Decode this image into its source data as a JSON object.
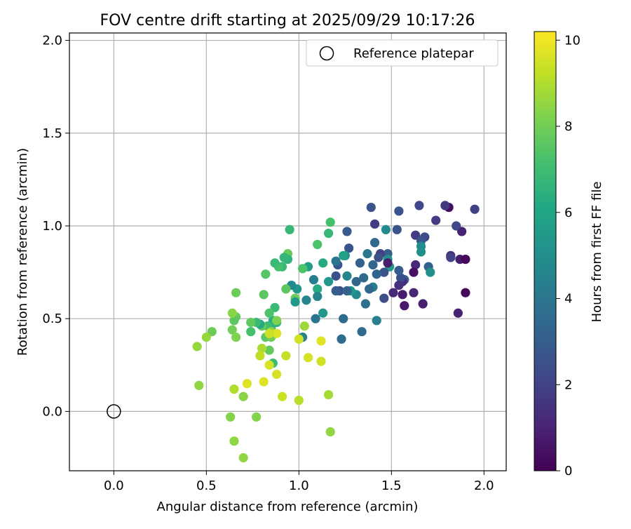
{
  "chart_data": {
    "type": "scatter",
    "title": "FOV centre drift starting at 2025/09/29 10:17:26",
    "xlabel": "Angular distance from reference (arcmin)",
    "ylabel": "Rotation from reference (arcmin)",
    "xlim": [
      -0.24,
      2.12
    ],
    "ylim": [
      -0.32,
      2.04
    ],
    "xticks": [
      0.0,
      0.5,
      1.0,
      1.5,
      2.0
    ],
    "xtick_labels": [
      "0.0",
      "0.5",
      "1.0",
      "1.5",
      "2.0"
    ],
    "yticks": [
      0.0,
      0.5,
      1.0,
      1.5,
      2.0
    ],
    "ytick_labels": [
      "0.0",
      "0.5",
      "1.0",
      "1.5",
      "2.0"
    ],
    "grid": true,
    "legend": {
      "position": "top-right",
      "entries": [
        "Reference platepar"
      ]
    },
    "reference_point": {
      "x": 0.0,
      "y": 0.0,
      "label": "Reference platepar"
    },
    "colorbar": {
      "label": "Hours from first FF file",
      "min": 0,
      "max": 10.2,
      "ticks": [
        0,
        2,
        4,
        6,
        8,
        10
      ],
      "tick_labels": [
        "0",
        "2",
        "4",
        "6",
        "8",
        "10"
      ],
      "colormap": "viridis"
    },
    "points": [
      {
        "x": 1.81,
        "y": 1.1,
        "c": 0.3
      },
      {
        "x": 1.79,
        "y": 1.11,
        "c": 1.6
      },
      {
        "x": 1.88,
        "y": 0.97,
        "c": 1.0
      },
      {
        "x": 1.85,
        "y": 1.0,
        "c": 2.2
      },
      {
        "x": 1.95,
        "y": 1.09,
        "c": 1.9
      },
      {
        "x": 1.87,
        "y": 0.82,
        "c": 0.8
      },
      {
        "x": 1.9,
        "y": 0.82,
        "c": 0.2
      },
      {
        "x": 1.82,
        "y": 0.84,
        "c": 1.2
      },
      {
        "x": 1.82,
        "y": 0.83,
        "c": 2.0
      },
      {
        "x": 1.9,
        "y": 0.64,
        "c": 0.2
      },
      {
        "x": 1.86,
        "y": 0.53,
        "c": 1.0
      },
      {
        "x": 1.74,
        "y": 1.03,
        "c": 1.8
      },
      {
        "x": 1.68,
        "y": 0.94,
        "c": 2.3
      },
      {
        "x": 1.65,
        "y": 1.11,
        "c": 2.2
      },
      {
        "x": 1.63,
        "y": 0.95,
        "c": 1.8
      },
      {
        "x": 1.66,
        "y": 0.92,
        "c": 2.7
      },
      {
        "x": 1.66,
        "y": 0.89,
        "c": 4.9
      },
      {
        "x": 1.66,
        "y": 0.86,
        "c": 5.0
      },
      {
        "x": 1.7,
        "y": 0.78,
        "c": 3.2
      },
      {
        "x": 1.71,
        "y": 0.75,
        "c": 5.0
      },
      {
        "x": 1.63,
        "y": 0.79,
        "c": 1.2
      },
      {
        "x": 1.62,
        "y": 0.75,
        "c": 0.4
      },
      {
        "x": 1.62,
        "y": 0.64,
        "c": 1.1
      },
      {
        "x": 1.67,
        "y": 0.58,
        "c": 0.9
      },
      {
        "x": 1.57,
        "y": 0.71,
        "c": 3.0
      },
      {
        "x": 1.56,
        "y": 0.7,
        "c": 1.3
      },
      {
        "x": 1.55,
        "y": 0.72,
        "c": 2.5
      },
      {
        "x": 1.54,
        "y": 0.76,
        "c": 3.0
      },
      {
        "x": 1.54,
        "y": 0.68,
        "c": 1.4
      },
      {
        "x": 1.56,
        "y": 0.63,
        "c": 0.8
      },
      {
        "x": 1.57,
        "y": 0.57,
        "c": 0.7
      },
      {
        "x": 1.51,
        "y": 0.64,
        "c": 1.2
      },
      {
        "x": 1.53,
        "y": 0.98,
        "c": 2.6
      },
      {
        "x": 1.54,
        "y": 1.08,
        "c": 2.7
      },
      {
        "x": 1.47,
        "y": 0.98,
        "c": 4.8
      },
      {
        "x": 1.48,
        "y": 0.85,
        "c": 3.1
      },
      {
        "x": 1.48,
        "y": 0.82,
        "c": 5.0
      },
      {
        "x": 1.49,
        "y": 0.78,
        "c": 5.4
      },
      {
        "x": 1.48,
        "y": 0.8,
        "c": 0.8
      },
      {
        "x": 1.46,
        "y": 0.75,
        "c": 2.6
      },
      {
        "x": 1.44,
        "y": 0.85,
        "c": 2.0
      },
      {
        "x": 1.43,
        "y": 0.83,
        "c": 2.5
      },
      {
        "x": 1.42,
        "y": 0.74,
        "c": 3.3
      },
      {
        "x": 1.41,
        "y": 0.91,
        "c": 3.4
      },
      {
        "x": 1.41,
        "y": 1.01,
        "c": 1.8
      },
      {
        "x": 1.39,
        "y": 1.1,
        "c": 2.6
      },
      {
        "x": 1.4,
        "y": 0.79,
        "c": 3.4
      },
      {
        "x": 1.4,
        "y": 0.67,
        "c": 4.2
      },
      {
        "x": 1.42,
        "y": 0.49,
        "c": 4.4
      },
      {
        "x": 1.46,
        "y": 0.61,
        "c": 2.4
      },
      {
        "x": 1.38,
        "y": 0.66,
        "c": 3.4
      },
      {
        "x": 1.37,
        "y": 0.85,
        "c": 4.1
      },
      {
        "x": 1.36,
        "y": 0.58,
        "c": 3.7
      },
      {
        "x": 1.35,
        "y": 0.72,
        "c": 3.5
      },
      {
        "x": 1.34,
        "y": 0.43,
        "c": 3.6
      },
      {
        "x": 1.33,
        "y": 0.8,
        "c": 3.1
      },
      {
        "x": 1.31,
        "y": 0.7,
        "c": 3.4
      },
      {
        "x": 1.31,
        "y": 0.63,
        "c": 4.8
      },
      {
        "x": 1.28,
        "y": 0.65,
        "c": 5.3
      },
      {
        "x": 1.27,
        "y": 0.88,
        "c": 2.7
      },
      {
        "x": 1.26,
        "y": 0.97,
        "c": 2.9
      },
      {
        "x": 1.26,
        "y": 0.73,
        "c": 4.6
      },
      {
        "x": 1.25,
        "y": 0.84,
        "c": 5.0
      },
      {
        "x": 1.24,
        "y": 0.84,
        "c": 5.8
      },
      {
        "x": 1.24,
        "y": 0.5,
        "c": 3.6
      },
      {
        "x": 1.23,
        "y": 0.39,
        "c": 3.6
      },
      {
        "x": 1.22,
        "y": 0.65,
        "c": 2.6
      },
      {
        "x": 1.21,
        "y": 0.79,
        "c": 2.7
      },
      {
        "x": 1.2,
        "y": 0.81,
        "c": 4.0
      },
      {
        "x": 1.2,
        "y": 0.73,
        "c": 2.5
      },
      {
        "x": 1.2,
        "y": 0.65,
        "c": 3.0
      },
      {
        "x": 1.26,
        "y": 0.65,
        "c": 3.2
      },
      {
        "x": 1.17,
        "y": 1.02,
        "c": 7.2
      },
      {
        "x": 1.16,
        "y": 0.96,
        "c": 6.8
      },
      {
        "x": 1.16,
        "y": 0.7,
        "c": 5.4
      },
      {
        "x": 1.13,
        "y": 0.8,
        "c": 6.2
      },
      {
        "x": 1.13,
        "y": 0.53,
        "c": 5.4
      },
      {
        "x": 1.1,
        "y": 0.9,
        "c": 7.3
      },
      {
        "x": 1.1,
        "y": 0.66,
        "c": 6.2
      },
      {
        "x": 1.1,
        "y": 0.62,
        "c": 4.6
      },
      {
        "x": 1.09,
        "y": 0.5,
        "c": 4.0
      },
      {
        "x": 1.08,
        "y": 0.71,
        "c": 4.3
      },
      {
        "x": 1.05,
        "y": 0.78,
        "c": 5.7
      },
      {
        "x": 1.04,
        "y": 0.6,
        "c": 4.7
      },
      {
        "x": 1.02,
        "y": 0.77,
        "c": 7.3
      },
      {
        "x": 1.02,
        "y": 0.4,
        "c": 4.4
      },
      {
        "x": 0.99,
        "y": 0.66,
        "c": 5.3
      },
      {
        "x": 0.98,
        "y": 0.61,
        "c": 7.9
      },
      {
        "x": 0.98,
        "y": 0.59,
        "c": 5.4
      },
      {
        "x": 0.96,
        "y": 0.68,
        "c": 4.8
      },
      {
        "x": 0.94,
        "y": 0.85,
        "c": 7.8
      },
      {
        "x": 0.94,
        "y": 0.82,
        "c": 6.6
      },
      {
        "x": 0.95,
        "y": 0.98,
        "c": 6.8
      },
      {
        "x": 0.93,
        "y": 0.66,
        "c": 7.6
      },
      {
        "x": 0.92,
        "y": 0.83,
        "c": 6.7
      },
      {
        "x": 0.91,
        "y": 0.78,
        "c": 6.8
      },
      {
        "x": 0.89,
        "y": 0.78,
        "c": 7.2
      },
      {
        "x": 0.87,
        "y": 0.8,
        "c": 6.9
      },
      {
        "x": 0.88,
        "y": 0.48,
        "c": 6.3
      },
      {
        "x": 0.87,
        "y": 0.56,
        "c": 6.9
      },
      {
        "x": 0.86,
        "y": 0.49,
        "c": 6.4
      },
      {
        "x": 0.85,
        "y": 0.45,
        "c": 6.6
      },
      {
        "x": 0.84,
        "y": 0.53,
        "c": 7.3
      },
      {
        "x": 0.83,
        "y": 0.46,
        "c": 7.0
      },
      {
        "x": 0.82,
        "y": 0.4,
        "c": 7.6
      },
      {
        "x": 0.82,
        "y": 0.74,
        "c": 7.5
      },
      {
        "x": 0.81,
        "y": 0.63,
        "c": 7.6
      },
      {
        "x": 0.8,
        "y": 0.46,
        "c": 7.8
      },
      {
        "x": 0.79,
        "y": 0.47,
        "c": 6.2
      },
      {
        "x": 0.77,
        "y": 0.48,
        "c": 6.9
      },
      {
        "x": 0.74,
        "y": 0.48,
        "c": 7.7
      },
      {
        "x": 0.74,
        "y": 0.43,
        "c": 7.2
      },
      {
        "x": 0.66,
        "y": 0.64,
        "c": 7.9
      },
      {
        "x": 0.66,
        "y": 0.51,
        "c": 7.8
      },
      {
        "x": 0.65,
        "y": 0.49,
        "c": 7.6
      },
      {
        "x": 0.64,
        "y": 0.53,
        "c": 8.4
      },
      {
        "x": 0.64,
        "y": 0.44,
        "c": 8.0
      },
      {
        "x": 0.66,
        "y": 0.4,
        "c": 8.2
      },
      {
        "x": 0.53,
        "y": 0.43,
        "c": 7.9
      },
      {
        "x": 0.5,
        "y": 0.4,
        "c": 8.6
      },
      {
        "x": 0.45,
        "y": 0.35,
        "c": 8.6
      },
      {
        "x": 0.84,
        "y": 0.33,
        "c": 7.7
      },
      {
        "x": 0.85,
        "y": 0.4,
        "c": 8.0
      },
      {
        "x": 0.85,
        "y": 0.43,
        "c": 8.4
      },
      {
        "x": 0.88,
        "y": 0.49,
        "c": 8.2
      },
      {
        "x": 0.86,
        "y": 0.26,
        "c": 7.0
      },
      {
        "x": 0.8,
        "y": 0.34,
        "c": 8.9
      },
      {
        "x": 0.79,
        "y": 0.3,
        "c": 9.2
      },
      {
        "x": 0.84,
        "y": 0.25,
        "c": 9.6
      },
      {
        "x": 0.88,
        "y": 0.2,
        "c": 9.6
      },
      {
        "x": 0.88,
        "y": 0.42,
        "c": 9.7
      },
      {
        "x": 0.84,
        "y": 0.42,
        "c": 9.4
      },
      {
        "x": 0.93,
        "y": 0.3,
        "c": 9.3
      },
      {
        "x": 1.0,
        "y": 0.39,
        "c": 9.5
      },
      {
        "x": 1.03,
        "y": 0.46,
        "c": 8.7
      },
      {
        "x": 1.05,
        "y": 0.29,
        "c": 9.6
      },
      {
        "x": 1.12,
        "y": 0.38,
        "c": 9.7
      },
      {
        "x": 1.12,
        "y": 0.27,
        "c": 9.5
      },
      {
        "x": 1.16,
        "y": 0.09,
        "c": 8.8
      },
      {
        "x": 1.0,
        "y": 0.06,
        "c": 9.1
      },
      {
        "x": 0.91,
        "y": 0.08,
        "c": 9.4
      },
      {
        "x": 0.81,
        "y": 0.16,
        "c": 9.7
      },
      {
        "x": 0.72,
        "y": 0.15,
        "c": 9.7
      },
      {
        "x": 0.65,
        "y": 0.12,
        "c": 9.0
      },
      {
        "x": 0.7,
        "y": 0.08,
        "c": 8.4
      },
      {
        "x": 0.46,
        "y": 0.14,
        "c": 8.5
      },
      {
        "x": 0.63,
        "y": -0.03,
        "c": 8.3
      },
      {
        "x": 0.77,
        "y": -0.03,
        "c": 8.3
      },
      {
        "x": 0.65,
        "y": -0.16,
        "c": 8.5
      },
      {
        "x": 0.7,
        "y": -0.25,
        "c": 8.5
      },
      {
        "x": 1.17,
        "y": -0.11,
        "c": 8.5
      }
    ]
  }
}
